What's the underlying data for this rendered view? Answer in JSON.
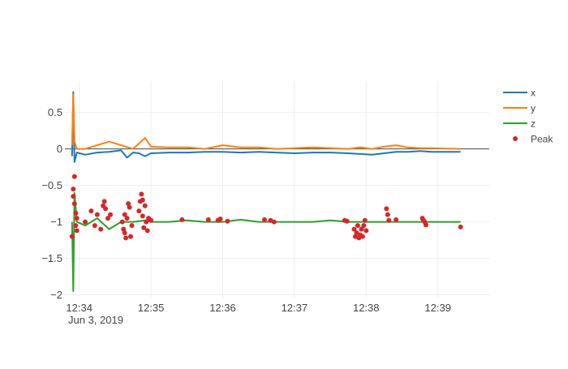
{
  "chart_data": {
    "type": "line",
    "date_label": "Jun 3, 2019",
    "x_ticks": [
      "2019-06-03 12:34",
      "2019-06-03 12:35",
      "2019-06-03 12:36",
      "2019-06-03 12:37",
      "2019-06-03 12:38",
      "2019-06-03 12:39"
    ],
    "x_tick_labels": [
      "12:34",
      "12:35",
      "12:36",
      "12:37",
      "12:38",
      "12:39"
    ],
    "xlim": [
      "2019-06-03 12:33:48",
      "2019-06-03 12:39:43"
    ],
    "y_ticks": [
      0.5,
      0,
      -0.5,
      -1,
      -1.5,
      -2
    ],
    "y_tick_labels": [
      "0.5",
      "0",
      "−0.5",
      "−1",
      "−1.5",
      "−2"
    ],
    "ylim": [
      -2.05,
      0.93
    ],
    "grid": true,
    "legend_position": "top-right",
    "series": [
      {
        "name": "x",
        "color": "#1f77b4",
        "x": [
          "12:33:54",
          "12:33:55",
          "12:33:56",
          "12:33:58",
          "12:34:05",
          "12:34:15",
          "12:34:25",
          "12:34:35",
          "12:34:40",
          "12:34:45",
          "12:34:50",
          "12:34:55",
          "12:35:00",
          "12:35:15",
          "12:35:30",
          "12:35:45",
          "12:36:00",
          "12:36:15",
          "12:36:30",
          "12:36:45",
          "12:37:00",
          "12:37:15",
          "12:37:30",
          "12:37:45",
          "12:37:55",
          "12:38:05",
          "12:38:15",
          "12:38:25",
          "12:38:35",
          "12:38:45",
          "12:38:55",
          "12:39:19"
        ],
        "values": [
          -0.1,
          0.78,
          -0.18,
          -0.05,
          -0.08,
          -0.05,
          -0.04,
          -0.02,
          -0.12,
          -0.05,
          -0.06,
          -0.1,
          -0.06,
          -0.05,
          -0.05,
          -0.04,
          -0.04,
          -0.05,
          -0.04,
          -0.05,
          -0.06,
          -0.05,
          -0.05,
          -0.06,
          -0.07,
          -0.08,
          -0.06,
          -0.04,
          -0.04,
          -0.03,
          -0.04,
          -0.04
        ]
      },
      {
        "name": "y",
        "color": "#ff7f0e",
        "x": [
          "12:33:54",
          "12:33:55",
          "12:33:56",
          "12:33:58",
          "12:34:05",
          "12:34:15",
          "12:34:25",
          "12:34:35",
          "12:34:45",
          "12:34:55",
          "12:35:00",
          "12:35:15",
          "12:35:30",
          "12:35:45",
          "12:36:00",
          "12:36:15",
          "12:36:30",
          "12:36:45",
          "12:37:00",
          "12:37:15",
          "12:37:30",
          "12:37:45",
          "12:37:55",
          "12:38:05",
          "12:38:15",
          "12:38:25",
          "12:38:35",
          "12:38:45",
          "12:38:55",
          "12:39:19"
        ],
        "values": [
          0.05,
          0.75,
          0.1,
          0.0,
          0.0,
          0.05,
          0.1,
          0.05,
          0.0,
          0.15,
          0.03,
          0.02,
          0.02,
          0.0,
          0.05,
          0.02,
          0.02,
          0.0,
          0.01,
          0.02,
          0.01,
          0.0,
          0.02,
          0.0,
          0.03,
          0.05,
          0.02,
          0.01,
          0.01,
          0.0
        ]
      },
      {
        "name": "z",
        "color": "#2ca02c",
        "x": [
          "12:33:54",
          "12:33:55",
          "12:33:56",
          "12:33:58",
          "12:34:05",
          "12:34:15",
          "12:34:25",
          "12:34:35",
          "12:34:45",
          "12:34:55",
          "12:35:00",
          "12:35:15",
          "12:35:30",
          "12:35:45",
          "12:36:00",
          "12:36:15",
          "12:36:30",
          "12:36:45",
          "12:37:00",
          "12:37:15",
          "12:37:30",
          "12:37:45",
          "12:37:55",
          "12:38:05",
          "12:38:15",
          "12:38:25",
          "12:38:35",
          "12:38:45",
          "12:38:55",
          "12:39:19"
        ],
        "values": [
          -1.0,
          -1.95,
          -0.6,
          -1.0,
          -1.05,
          -0.95,
          -1.1,
          -1.0,
          -1.0,
          -0.98,
          -1.0,
          -1.0,
          -0.98,
          -1.0,
          -1.0,
          -0.97,
          -1.0,
          -1.0,
          -1.0,
          -1.0,
          -0.98,
          -1.0,
          -1.0,
          -1.0,
          -1.0,
          -1.0,
          -1.0,
          -1.0,
          -1.0,
          -1.0
        ]
      }
    ],
    "peak_series": {
      "name": "Peak",
      "color": "#d62728",
      "points": [
        {
          "x": "12:33:54",
          "y": -1.2
        },
        {
          "x": "12:33:55",
          "y": -0.55
        },
        {
          "x": "12:33:55",
          "y": -0.65
        },
        {
          "x": "12:33:56",
          "y": -0.38
        },
        {
          "x": "12:33:56",
          "y": -0.75
        },
        {
          "x": "12:33:57",
          "y": -0.88
        },
        {
          "x": "12:33:57",
          "y": -1.05
        },
        {
          "x": "12:33:58",
          "y": -1.12
        },
        {
          "x": "12:33:58",
          "y": -0.95
        },
        {
          "x": "12:34:05",
          "y": -1.0
        },
        {
          "x": "12:34:10",
          "y": -0.85
        },
        {
          "x": "12:34:13",
          "y": -1.05
        },
        {
          "x": "12:34:15",
          "y": -0.9
        },
        {
          "x": "12:34:18",
          "y": -1.1
        },
        {
          "x": "12:34:20",
          "y": -0.78
        },
        {
          "x": "12:34:21",
          "y": -0.72
        },
        {
          "x": "12:34:22",
          "y": -0.82
        },
        {
          "x": "12:34:24",
          "y": -0.95
        },
        {
          "x": "12:34:26",
          "y": -0.9
        },
        {
          "x": "12:34:36",
          "y": -1.0
        },
        {
          "x": "12:34:37",
          "y": -1.1
        },
        {
          "x": "12:34:38",
          "y": -0.9
        },
        {
          "x": "12:34:38",
          "y": -1.15
        },
        {
          "x": "12:34:39",
          "y": -1.22
        },
        {
          "x": "12:34:40",
          "y": -0.95
        },
        {
          "x": "12:34:41",
          "y": -0.75
        },
        {
          "x": "12:34:42",
          "y": -0.8
        },
        {
          "x": "12:34:43",
          "y": -1.2
        },
        {
          "x": "12:34:44",
          "y": -1.05
        },
        {
          "x": "12:34:50",
          "y": -0.85
        },
        {
          "x": "12:34:51",
          "y": -0.72
        },
        {
          "x": "12:34:52",
          "y": -0.62
        },
        {
          "x": "12:34:53",
          "y": -0.7
        },
        {
          "x": "12:34:53",
          "y": -0.92
        },
        {
          "x": "12:34:54",
          "y": -1.08
        },
        {
          "x": "12:34:55",
          "y": -0.78
        },
        {
          "x": "12:34:56",
          "y": -1.0
        },
        {
          "x": "12:34:57",
          "y": -1.12
        },
        {
          "x": "12:34:58",
          "y": -0.95
        },
        {
          "x": "12:35:00",
          "y": -0.98
        },
        {
          "x": "12:35:26",
          "y": -0.97
        },
        {
          "x": "12:35:48",
          "y": -0.97
        },
        {
          "x": "12:35:56",
          "y": -0.98
        },
        {
          "x": "12:35:58",
          "y": -0.96
        },
        {
          "x": "12:36:04",
          "y": -0.99
        },
        {
          "x": "12:36:35",
          "y": -0.97
        },
        {
          "x": "12:36:40",
          "y": -0.98
        },
        {
          "x": "12:36:43",
          "y": -1.0
        },
        {
          "x": "12:37:42",
          "y": -0.98
        },
        {
          "x": "12:37:44",
          "y": -0.99
        },
        {
          "x": "12:37:50",
          "y": -1.1
        },
        {
          "x": "12:37:51",
          "y": -1.2
        },
        {
          "x": "12:37:52",
          "y": -1.15
        },
        {
          "x": "12:37:53",
          "y": -1.05
        },
        {
          "x": "12:37:54",
          "y": -1.22
        },
        {
          "x": "12:37:55",
          "y": -1.18
        },
        {
          "x": "12:37:56",
          "y": -1.1
        },
        {
          "x": "12:37:57",
          "y": -1.2
        },
        {
          "x": "12:37:58",
          "y": -1.05
        },
        {
          "x": "12:37:59",
          "y": -0.98
        },
        {
          "x": "12:38:00",
          "y": -1.12
        },
        {
          "x": "12:38:17",
          "y": -0.82
        },
        {
          "x": "12:38:18",
          "y": -0.9
        },
        {
          "x": "12:38:19",
          "y": -0.98
        },
        {
          "x": "12:38:25",
          "y": -0.97
        },
        {
          "x": "12:38:47",
          "y": -0.95
        },
        {
          "x": "12:38:48",
          "y": -0.98
        },
        {
          "x": "12:38:49",
          "y": -1.0
        },
        {
          "x": "12:38:50",
          "y": -1.04
        },
        {
          "x": "12:39:19",
          "y": -1.07
        }
      ]
    }
  }
}
